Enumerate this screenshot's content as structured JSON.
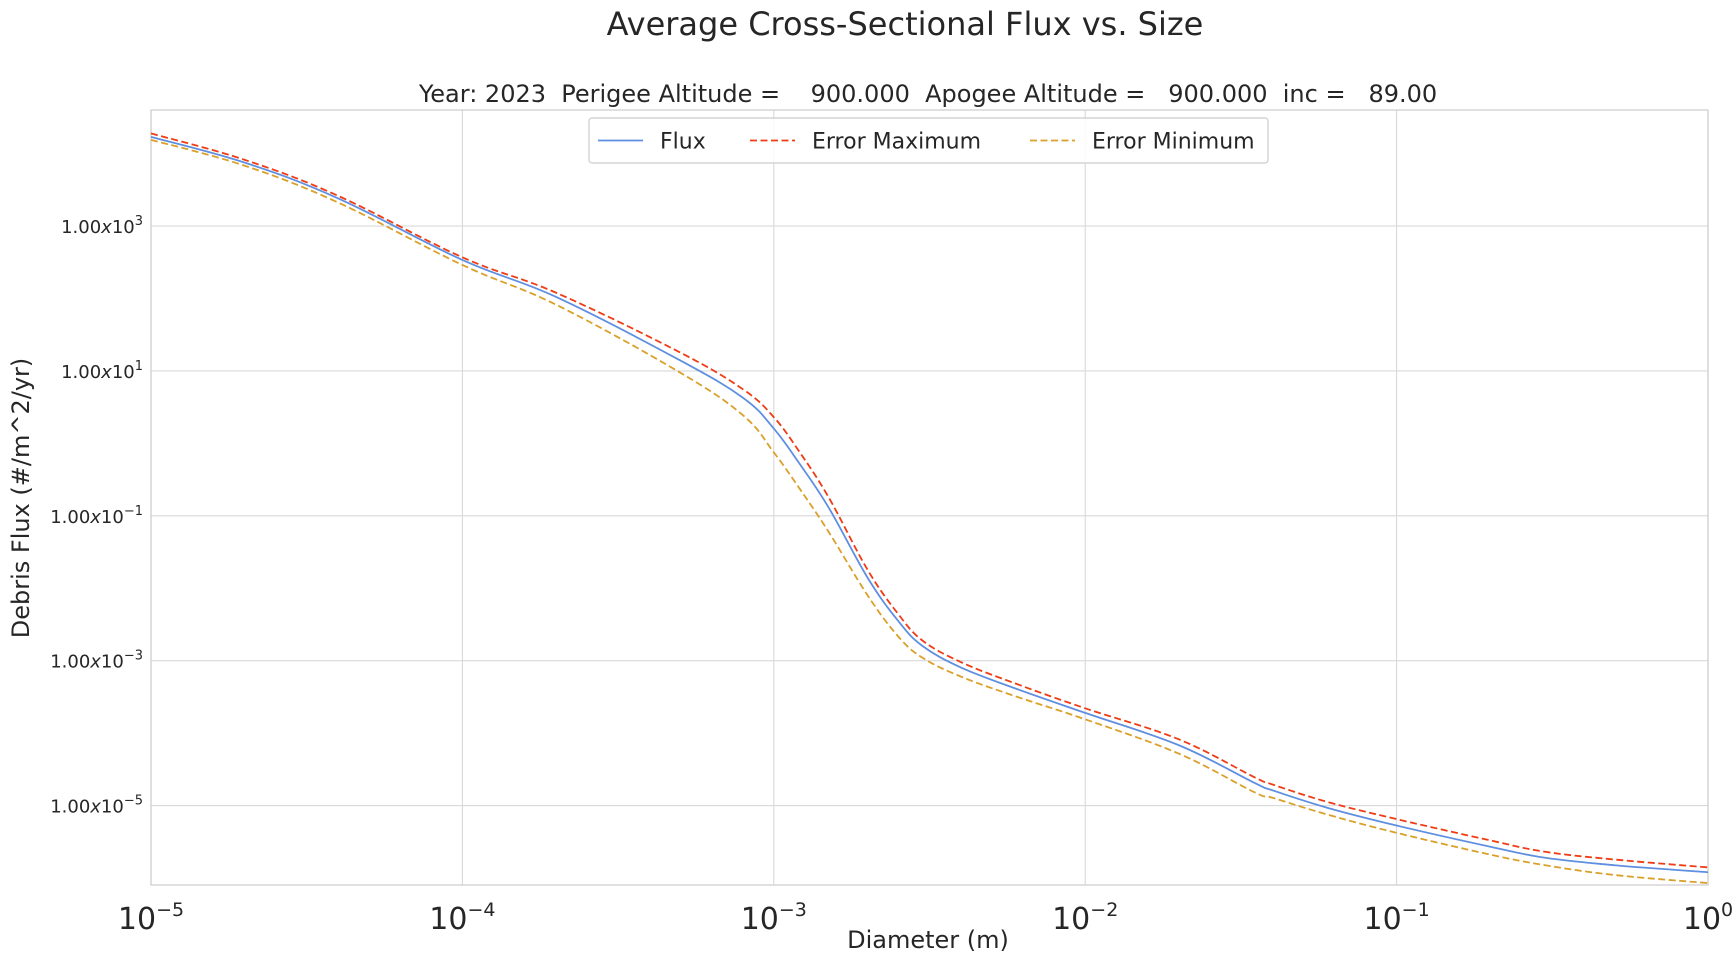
{
  "chart_data": {
    "type": "line",
    "title": "Average Cross-Sectional Flux vs. Size",
    "subtitle": "Year: 2023  Perigee Altitude =    900.000  Apogee Altitude =   900.000  inc =   89.00",
    "xlabel": "Diameter (m)",
    "ylabel": "Debris Flux (#/m^2/yr)",
    "xscale": "log",
    "yscale": "log",
    "xlim": [
      1e-05,
      1
    ],
    "ylim": [
      8e-07,
      40000
    ],
    "grid": true,
    "legend": {
      "placement": "top-center",
      "columns": 3
    },
    "xticks": [
      {
        "value": 1e-05,
        "base": "10",
        "exp": "−5"
      },
      {
        "value": 0.0001,
        "base": "10",
        "exp": "−4"
      },
      {
        "value": 0.001,
        "base": "10",
        "exp": "−3"
      },
      {
        "value": 0.01,
        "base": "10",
        "exp": "−2"
      },
      {
        "value": 0.1,
        "base": "10",
        "exp": "−1"
      },
      {
        "value": 1,
        "base": "10",
        "exp": "0"
      }
    ],
    "yticks": [
      {
        "value": 1000,
        "mant": "1.00",
        "x": "x",
        "base": "10",
        "exp": "3"
      },
      {
        "value": 10,
        "mant": "1.00",
        "x": "x",
        "base": "10",
        "exp": "1"
      },
      {
        "value": 0.1,
        "mant": "1.00",
        "x": "x",
        "base": "10",
        "exp": "−1"
      },
      {
        "value": 0.001,
        "mant": "1.00",
        "x": "x",
        "base": "10",
        "exp": "−3"
      },
      {
        "value": 1e-05,
        "mant": "1.00",
        "x": "x",
        "base": "10",
        "exp": "−5"
      }
    ],
    "x": [
      1e-05,
      2e-05,
      4e-05,
      0.0001,
      0.0002,
      0.0005,
      0.0008,
      0.001,
      0.0012,
      0.0015,
      0.002,
      0.0025,
      0.003,
      0.004,
      0.006,
      0.01,
      0.02,
      0.035,
      0.04,
      0.06,
      0.1,
      0.2,
      0.3,
      0.5,
      1
    ],
    "series": [
      {
        "name": "Flux",
        "color": "#5f8fe0",
        "dash": "solid",
        "values": [
          17000,
          7500,
          2400,
          340,
          105,
          14,
          4.2,
          1.6,
          0.55,
          0.13,
          0.014,
          0.0036,
          0.0016,
          0.0008,
          0.00041,
          0.00019,
          6.8e-05,
          2.05e-05,
          1.62e-05,
          9.3e-06,
          5.3e-06,
          2.7e-06,
          1.9e-06,
          1.5e-06,
          1.2e-06
        ]
      },
      {
        "name": "Error Maximum",
        "color": "#f03c14",
        "dash": "dashed",
        "values": [
          19000,
          8200,
          2600,
          370,
          120,
          18,
          5.5,
          2.3,
          0.8,
          0.18,
          0.018,
          0.0045,
          0.0019,
          0.00095,
          0.00048,
          0.00022,
          8.2e-05,
          2.45e-05,
          1.95e-05,
          1.12e-05,
          6.5e-06,
          3.3e-06,
          2.3e-06,
          1.8e-06,
          1.4e-06
        ]
      },
      {
        "name": "Error Minimum",
        "color": "#daa02a",
        "dash": "dashed",
        "values": [
          15500,
          6800,
          2100,
          290,
          82,
          9.5,
          2.4,
          0.75,
          0.25,
          0.06,
          0.008,
          0.0022,
          0.0011,
          0.0006,
          0.00032,
          0.000155,
          5.2e-05,
          1.52e-05,
          1.28e-05,
          7.5e-06,
          4.2e-06,
          2.1e-06,
          1.5e-06,
          1.1e-06,
          8.5e-07
        ]
      }
    ]
  }
}
